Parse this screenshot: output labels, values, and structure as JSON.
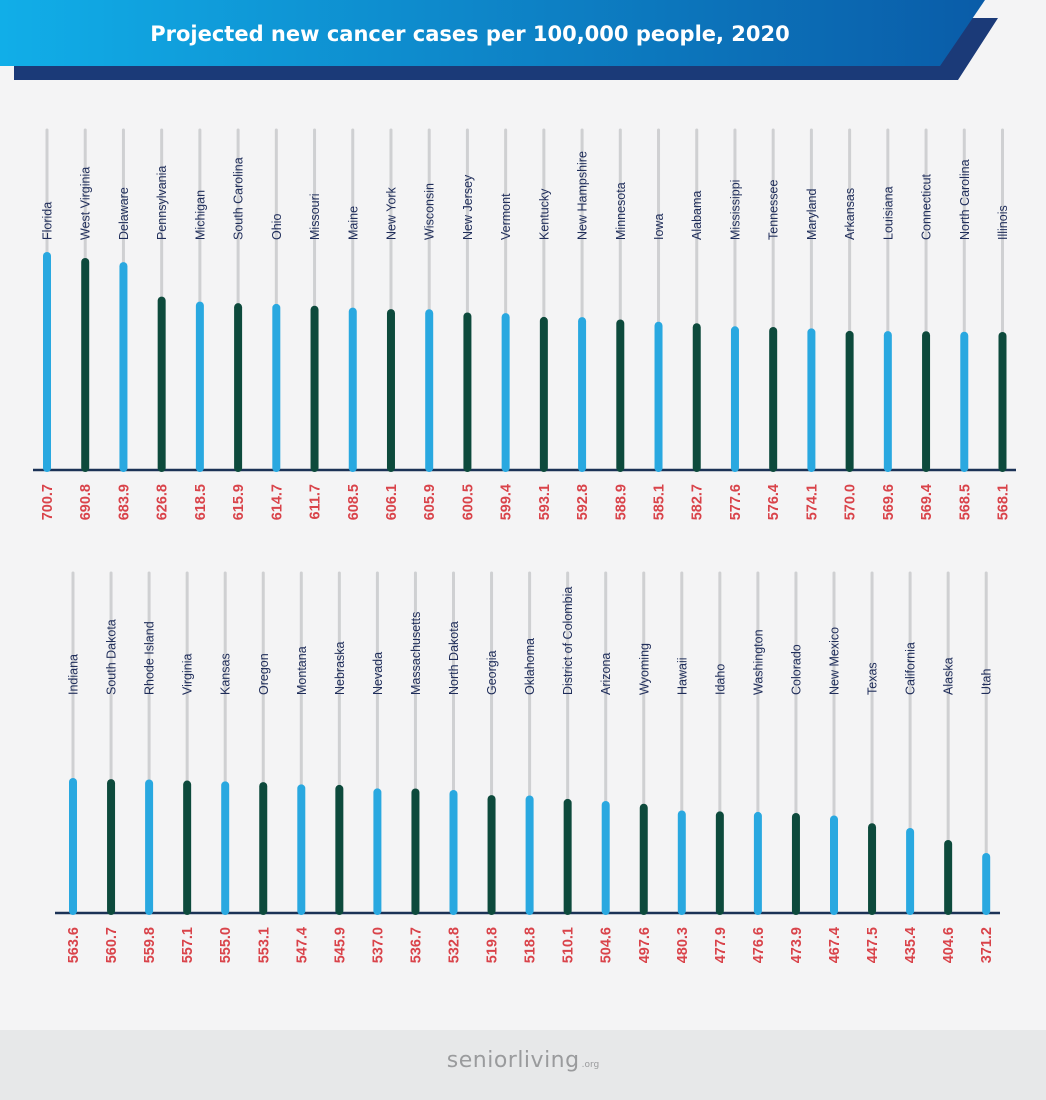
{
  "colors": {
    "banner_light": "#11aee8",
    "banner_dark": "#0a5ca8",
    "banner_navy": "#1b3a78",
    "bar_blue": "#29a8e0",
    "bar_green": "#0d4a3c",
    "track": "#cfd0d2",
    "axis": "#1b3256",
    "state_label": "#1f2d5a",
    "value_label": "#d9434a"
  },
  "chart_data": {
    "type": "bar",
    "title": "Projected new cancer cases per 100,000 people, 2020",
    "categories": [
      "Florida",
      "West Virginia",
      "Delaware",
      "Pennsylvania",
      "Michigan",
      "South Carolina",
      "Ohio",
      "Missouri",
      "Maine",
      "New York",
      "Wisconsin",
      "New Jersey",
      "Vermont",
      "Kentucky",
      "New Hampshire",
      "Minnesota",
      "Iowa",
      "Alabama",
      "Mississippi",
      "Tennessee",
      "Maryland",
      "Arkansas",
      "Louisiana",
      "Connecticut",
      "North Carolina",
      "Illinois",
      "Indiana",
      "South Dakota",
      "Rhode Island",
      "Virginia",
      "Kansas",
      "Oregon",
      "Montana",
      "Nebraska",
      "Nevada",
      "Massachusetts",
      "North Dakota",
      "Georgia",
      "Oklahoma",
      "District of Colombia",
      "Arizona",
      "Wyoming",
      "Hawaii",
      "Idaho",
      "Washington",
      "Colorado",
      "New Mexico",
      "Texas",
      "California",
      "Alaska",
      "Utah"
    ],
    "values": [
      "700.7",
      "690.8",
      "683.9",
      "626.8",
      "618.5",
      "615.9",
      "614.7",
      "611.7",
      "608.5",
      "606.1",
      "605.9",
      "600.5",
      "599.4",
      "593.1",
      "592.8",
      "588.9",
      "585.1",
      "582.7",
      "577.6",
      "576.4",
      "574.1",
      "570.0",
      "569.6",
      "569.4",
      "568.5",
      "568.1",
      "563.6",
      "560.7",
      "559.8",
      "557.1",
      "555.0",
      "553.1",
      "547.4",
      "545.9",
      "537.0",
      "536.7",
      "532.8",
      "519.8",
      "518.8",
      "510.1",
      "504.6",
      "497.6",
      "480.3",
      "477.9",
      "476.6",
      "473.9",
      "467.4",
      "447.5",
      "435.4",
      "404.6",
      "371.2"
    ],
    "panels": [
      {
        "start": 0,
        "end": 26
      },
      {
        "start": 26,
        "end": 51
      }
    ],
    "legend": "none",
    "grid": false
  },
  "footer": {
    "brand": "seniorliving",
    "tld": ".org"
  }
}
